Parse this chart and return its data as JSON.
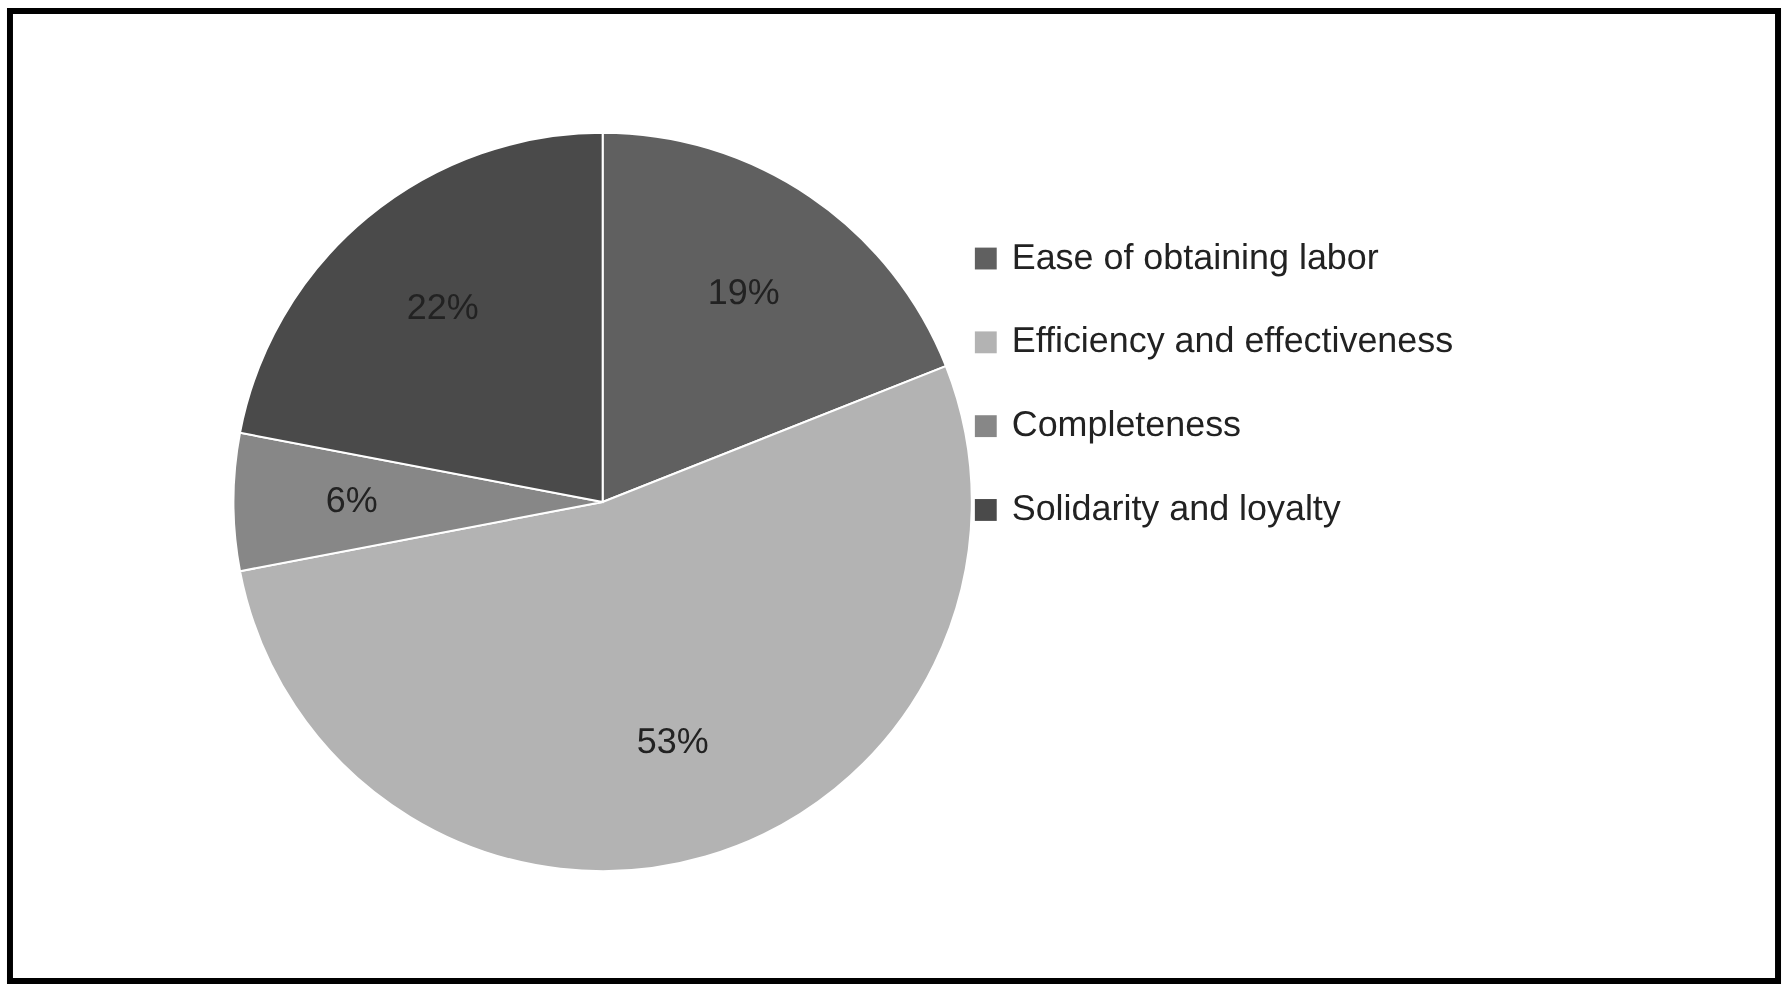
{
  "chart_data": {
    "type": "pie",
    "categories": [
      "Ease of obtaining labor",
      "Efficiency and effectiveness",
      "Completeness",
      "Solidarity and loyalty"
    ],
    "values": [
      19,
      53,
      6,
      22
    ],
    "colors": [
      "#606060",
      "#b3b3b3",
      "#878787",
      "#4a4a4a"
    ],
    "value_labels": [
      "19%",
      "53%",
      "6%",
      "22%"
    ],
    "legend": "right"
  }
}
